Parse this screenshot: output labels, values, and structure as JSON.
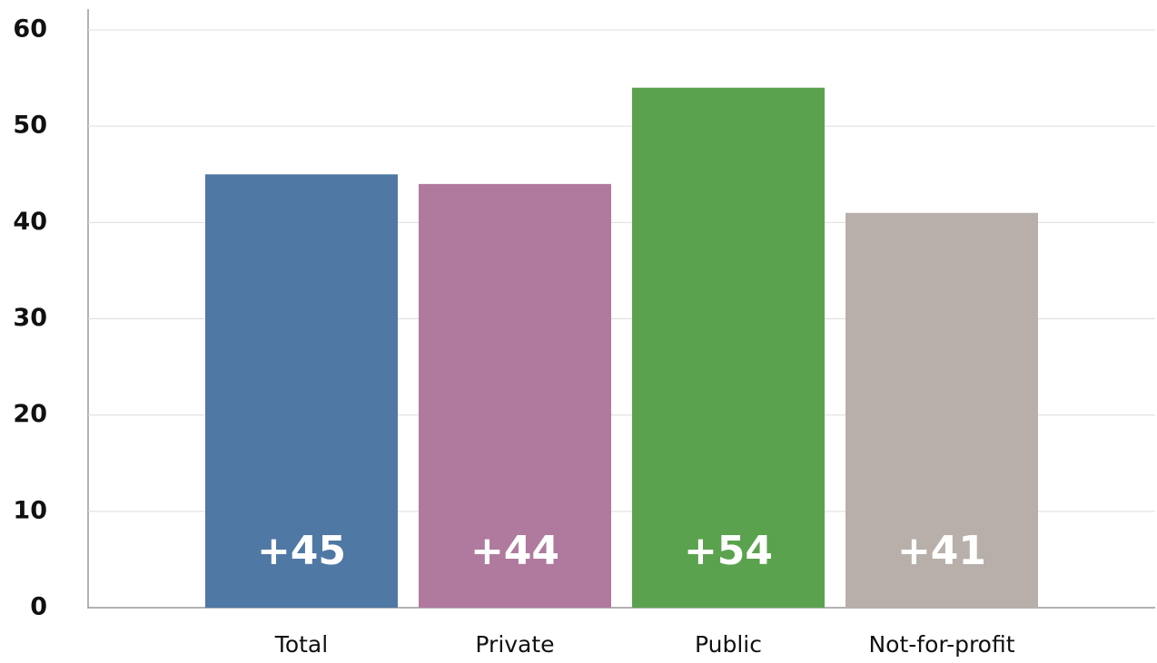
{
  "chart_data": {
    "type": "bar",
    "categories": [
      "Total",
      "Private",
      "Public",
      "Not-for-profit"
    ],
    "values": [
      45,
      44,
      54,
      41
    ],
    "value_labels": [
      "+45",
      "+44",
      "+54",
      "+41"
    ],
    "colors": [
      "#4f78a5",
      "#b07a9f",
      "#5ba24f",
      "#b8afaa"
    ],
    "ylim": [
      0,
      60
    ],
    "yticks": [
      0,
      10,
      20,
      30,
      40,
      50,
      60
    ],
    "grid": true
  }
}
